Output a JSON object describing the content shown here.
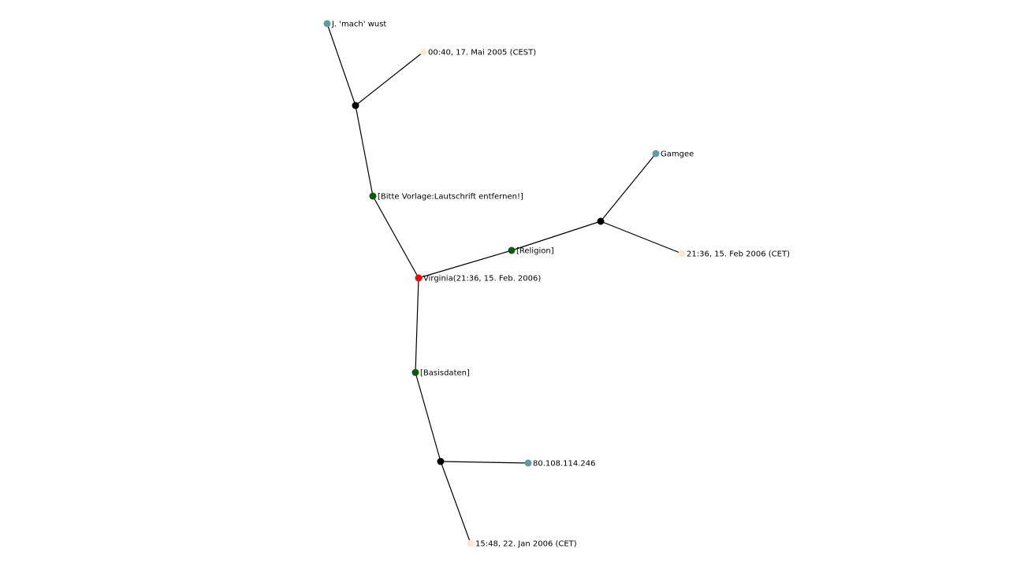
{
  "colors": {
    "center": "#ff0000",
    "section": "#0a5c0a",
    "junction": "#000000",
    "user": "#5f9ea0",
    "timestamp": "#fbe9cf",
    "edge": "#000000",
    "background": "#ffffff"
  },
  "nodes": [
    {
      "id": "virginia",
      "kind": "center",
      "label": "Virginia(21:36, 15. Feb. 2006)"
    },
    {
      "id": "lautschrift",
      "kind": "section",
      "label": "[Bitte Vorlage:Lautschrift entfernen!]"
    },
    {
      "id": "religion",
      "kind": "section",
      "label": "[Religion]"
    },
    {
      "id": "basisdaten",
      "kind": "section",
      "label": "[Basisdaten]"
    },
    {
      "id": "j1",
      "kind": "junction",
      "label": ""
    },
    {
      "id": "j2",
      "kind": "junction",
      "label": ""
    },
    {
      "id": "j3",
      "kind": "junction",
      "label": ""
    },
    {
      "id": "wust",
      "kind": "user",
      "label": "J. 'mach' wust"
    },
    {
      "id": "t2005",
      "kind": "timestamp",
      "label": "00:40, 17. Mai 2005 (CEST)"
    },
    {
      "id": "gamgee",
      "kind": "user",
      "label": "Gamgee"
    },
    {
      "id": "t2006feb",
      "kind": "timestamp",
      "label": "21:36, 15. Feb 2006 (CET)"
    },
    {
      "id": "ip",
      "kind": "user",
      "label": "80.108.114.246"
    },
    {
      "id": "t2006jan",
      "kind": "timestamp",
      "label": "15:48, 22. Jan 2006 (CET)"
    }
  ],
  "edges": [
    [
      "virginia",
      "lautschrift"
    ],
    [
      "lautschrift",
      "j1"
    ],
    [
      "j1",
      "wust"
    ],
    [
      "j1",
      "t2005"
    ],
    [
      "virginia",
      "religion"
    ],
    [
      "religion",
      "j2"
    ],
    [
      "j2",
      "gamgee"
    ],
    [
      "j2",
      "t2006feb"
    ],
    [
      "virginia",
      "basisdaten"
    ],
    [
      "basisdaten",
      "j3"
    ],
    [
      "j3",
      "ip"
    ],
    [
      "j3",
      "t2006jan"
    ]
  ]
}
